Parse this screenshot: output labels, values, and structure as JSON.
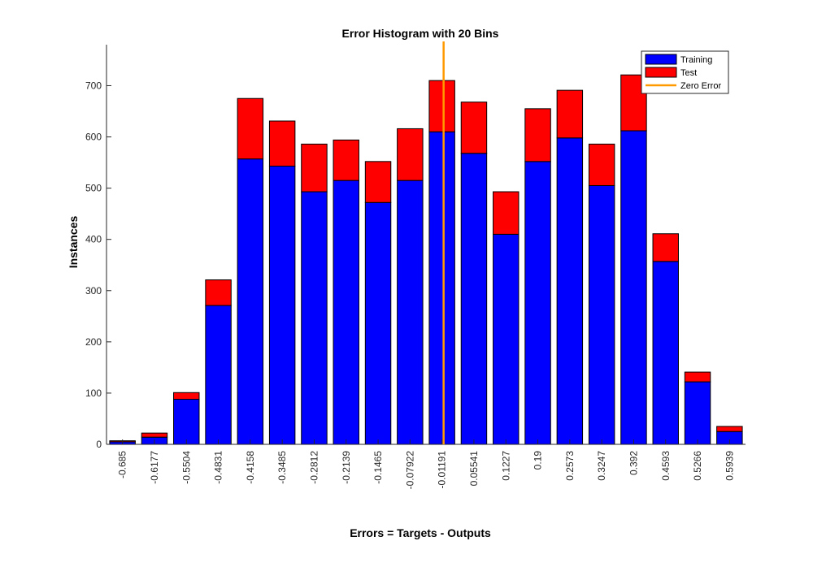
{
  "chart_data": {
    "type": "bar",
    "stacked": true,
    "title": "Error Histogram with 20 Bins",
    "xlabel": "Errors = Targets - Outputs",
    "ylabel": "Instances",
    "ylim": [
      0,
      780
    ],
    "yticks": [
      0,
      100,
      200,
      300,
      400,
      500,
      600,
      700
    ],
    "categories": [
      "-0.685",
      "-0.6177",
      "-0.5504",
      "-0.4831",
      "-0.4158",
      "-0.3485",
      "-0.2812",
      "-0.2139",
      "-0.1465",
      "-0.07922",
      "-0.01191",
      "0.05541",
      "0.1227",
      "0.19",
      "0.2573",
      "0.3247",
      "0.392",
      "0.4593",
      "0.5266",
      "0.5939"
    ],
    "series": [
      {
        "name": "Training",
        "color": "#0000ff",
        "values": [
          5,
          14,
          88,
          271,
          557,
          543,
          493,
          515,
          472,
          515,
          610,
          568,
          410,
          552,
          598,
          505,
          612,
          357,
          122,
          25
        ]
      },
      {
        "name": "Test",
        "color": "#ff0000",
        "values": [
          2,
          8,
          13,
          50,
          118,
          88,
          93,
          79,
          80,
          101,
          100,
          100,
          83,
          103,
          93,
          81,
          109,
          54,
          19,
          10
        ]
      }
    ],
    "zero_error": {
      "name": "Zero Error",
      "x": 0,
      "color": "#ff9900",
      "bin_category": "-0.01191"
    },
    "legend": {
      "position": "top-right",
      "entries": [
        "Training",
        "Test",
        "Zero Error"
      ]
    },
    "grid": false
  }
}
